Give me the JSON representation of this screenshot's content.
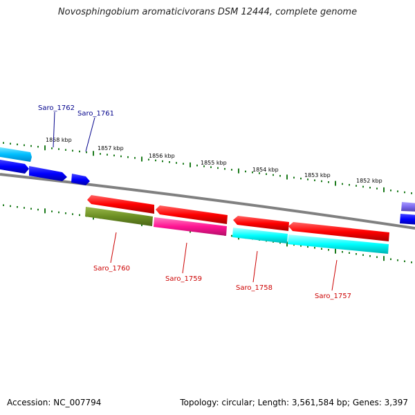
{
  "title": "Novosphingobium aromaticivorans DSM 12444, complete genome",
  "footer": {
    "accession": "Accession: NC_007794",
    "summary": "Topology: circular; Length: 3,561,584 bp; Genes: 3,397"
  },
  "ticks": [
    {
      "label": "1858 kbp"
    },
    {
      "label": "1857 kbp"
    },
    {
      "label": "1856 kbp"
    },
    {
      "label": "1855 kbp"
    },
    {
      "label": "1854 kbp"
    },
    {
      "label": "1853 kbp"
    },
    {
      "label": "1852 kbp"
    }
  ],
  "genes_top": [
    {
      "name": "Saro_1762",
      "color": "#00008b"
    },
    {
      "name": "Saro_1761",
      "color": "#00008b"
    }
  ],
  "genes_bottom": [
    {
      "name": "Saro_1760",
      "color": "#cc0000"
    },
    {
      "name": "Saro_1759",
      "color": "#cc0000"
    },
    {
      "name": "Saro_1758",
      "color": "#cc0000"
    },
    {
      "name": "Saro_1757",
      "color": "#cc0000"
    }
  ],
  "colors": {
    "backbone": "#808080",
    "tick_dots": "#1a7a1a",
    "forward_gene": "#0000ff",
    "forward_gene_light": "#00ccff",
    "reverse_gene": "#ff0000",
    "olive_gene": "#6b8e23",
    "magenta_gene": "#ff1493",
    "cyan_gene": "#00ffff",
    "purple_gene": "#7b68ee"
  }
}
